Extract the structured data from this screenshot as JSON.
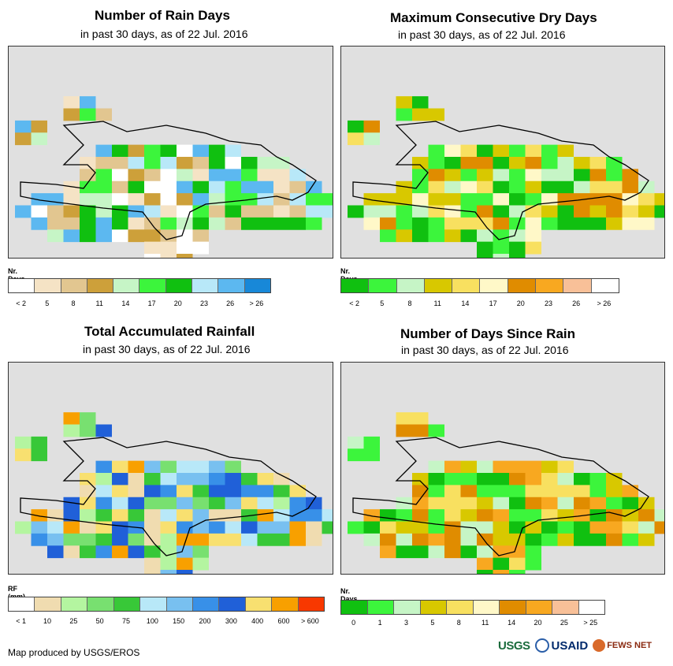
{
  "panels": [
    {
      "id": "rain_days",
      "title": "Number of Rain Days",
      "subtitle": "in past 30 days, as of 22 Jul. 2016",
      "legend_title": "Nr. Days",
      "legend_colors": [
        "#ffffff",
        "#f5e3c5",
        "#e2c690",
        "#cda03a",
        "#c6f5c6",
        "#3cf53c",
        "#10c010",
        "#b8e8f8",
        "#5cb8f0",
        "#1888d8"
      ],
      "legend_ticks": [
        "< 2",
        "5",
        "8",
        "11",
        "14",
        "17",
        "20",
        "23",
        "26",
        "> 26"
      ],
      "map_palette": [
        "#ffffff",
        "#f5e3c5",
        "#e2c690",
        "#cda03a",
        "#c6f5c6",
        "#3cf53c",
        "#10c010",
        "#b8e8f8",
        "#5cb8f0"
      ],
      "seed": 3
    },
    {
      "id": "max_dry_days",
      "title": "Maximum Consecutive Dry Days",
      "subtitle": "in past 30 days, as of 22 Jul. 2016",
      "legend_title": "Nr. Days",
      "legend_colors": [
        "#10c010",
        "#3cf53c",
        "#c6f5c6",
        "#d8c800",
        "#f8e060",
        "#fff8c8",
        "#e08c00",
        "#f8a820",
        "#f8c098",
        "#ffffff"
      ],
      "legend_ticks": [
        "< 2",
        "5",
        "8",
        "11",
        "14",
        "17",
        "20",
        "23",
        "26",
        "> 26"
      ],
      "map_palette": [
        "#10c010",
        "#3cf53c",
        "#c6f5c6",
        "#d8c800",
        "#f8e060",
        "#fff8c8",
        "#e08c00"
      ],
      "seed": 7
    },
    {
      "id": "total_rainfall",
      "title": "Total Accumulated Rainfall",
      "subtitle": "in past 30 days, as of 22 Jul. 2016",
      "legend_title": "RF (mm)",
      "legend_colors": [
        "#ffffff",
        "#f0dcb0",
        "#b4f5a0",
        "#78e070",
        "#38c838",
        "#b8e8f8",
        "#78c0f0",
        "#3890e8",
        "#2060d8",
        "#f8e070",
        "#f8a000",
        "#f83800"
      ],
      "legend_ticks": [
        "< 1",
        "10",
        "25",
        "50",
        "75",
        "100",
        "150",
        "200",
        "300",
        "400",
        "600",
        "> 600"
      ],
      "map_palette": [
        "#f0dcb0",
        "#b4f5a0",
        "#78e070",
        "#38c838",
        "#b8e8f8",
        "#78c0f0",
        "#3890e8",
        "#2060d8",
        "#f8e070",
        "#f8a000"
      ],
      "seed": 11
    },
    {
      "id": "days_since_rain",
      "title": "Number of Days Since Rain",
      "subtitle": "in past 30 days, as of 22 Jul. 2016",
      "legend_title": "Nr. Days",
      "legend_colors": [
        "#10c010",
        "#3cf53c",
        "#c6f5c6",
        "#d8c800",
        "#f8e060",
        "#fff8c8",
        "#e08c00",
        "#f8a820",
        "#f8c098",
        "#ffffff"
      ],
      "legend_ticks": [
        "0",
        "1",
        "3",
        "5",
        "8",
        "11",
        "14",
        "20",
        "25",
        "> 25"
      ],
      "map_palette": [
        "#10c010",
        "#3cf53c",
        "#c6f5c6",
        "#d8c800",
        "#f8e060",
        "#e08c00",
        "#f8a820"
      ],
      "seed": 19
    }
  ],
  "credit": "Map produced by USGS/EROS",
  "logos": {
    "usgs": "USGS",
    "usaid": "USAID",
    "fews": "FEWS NET"
  }
}
